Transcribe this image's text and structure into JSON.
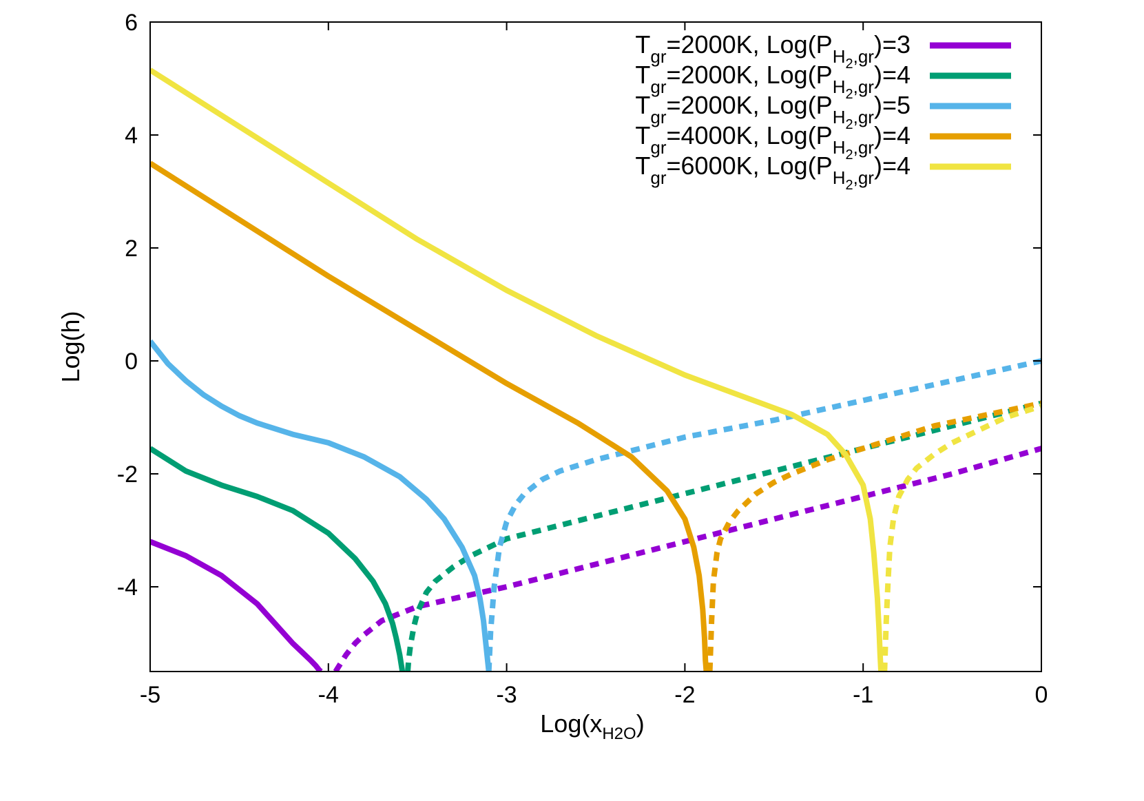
{
  "chart_data": {
    "type": "line",
    "title": "",
    "xlabel": "Log(x",
    "xlabel_sub": "H2O",
    "xlabel_close": ")",
    "ylabel": "Log(h)",
    "xlim": [
      -5,
      0
    ],
    "ylim": [
      -5.5,
      6
    ],
    "x_ticks": [
      -5,
      -4,
      -3,
      -2,
      -1,
      0
    ],
    "y_ticks": [
      -4,
      -2,
      0,
      2,
      4,
      6
    ],
    "x_tick_labels": [
      "-5",
      "-4",
      "-3",
      "-2",
      "-1",
      "0"
    ],
    "y_tick_labels": [
      "-4",
      "-2",
      "0",
      "2",
      "4",
      "6"
    ],
    "grid": false,
    "legend_position": "top-right",
    "series": [
      {
        "label": {
          "t": "T",
          "t_sub": "gr",
          "mid": "=2000K, Log(P",
          "p_sub": "H",
          "p_sub2": "2",
          "p_sub3": ",gr",
          "end": ")=3"
        },
        "color": "#9400d3",
        "solid": {
          "x": [
            -5.0,
            -4.8,
            -4.6,
            -4.4,
            -4.3,
            -4.2,
            -4.15,
            -4.1,
            -4.07,
            -4.05,
            -4.04
          ],
          "y": [
            -3.2,
            -3.45,
            -3.8,
            -4.3,
            -4.65,
            -5.0,
            -5.15,
            -5.3,
            -5.4,
            -5.48,
            -5.5
          ]
        },
        "dashed": {
          "x": [
            -3.96,
            -3.93,
            -3.9,
            -3.85,
            -3.8,
            -3.7,
            -3.5,
            -3.0,
            -2.5,
            -2.0,
            -1.5,
            -1.0,
            -0.5,
            0.0
          ],
          "y": [
            -5.5,
            -5.35,
            -5.2,
            -5.0,
            -4.85,
            -4.6,
            -4.35,
            -4.0,
            -3.6,
            -3.2,
            -2.8,
            -2.4,
            -2.0,
            -1.55
          ]
        }
      },
      {
        "label": {
          "t": "T",
          "t_sub": "gr",
          "mid": "=2000K, Log(P",
          "p_sub": "H",
          "p_sub2": "2",
          "p_sub3": ",gr",
          "end": ")=4"
        },
        "color": "#009e73",
        "solid": {
          "x": [
            -5.0,
            -4.8,
            -4.6,
            -4.4,
            -4.2,
            -4.0,
            -3.85,
            -3.75,
            -3.68,
            -3.64,
            -3.62,
            -3.6,
            -3.59,
            -3.585
          ],
          "y": [
            -1.55,
            -1.95,
            -2.2,
            -2.4,
            -2.65,
            -3.05,
            -3.5,
            -3.9,
            -4.3,
            -4.65,
            -4.9,
            -5.2,
            -5.4,
            -5.5
          ]
        },
        "dashed": {
          "x": [
            -3.555,
            -3.55,
            -3.54,
            -3.52,
            -3.5,
            -3.45,
            -3.4,
            -3.3,
            -3.2,
            -3.0,
            -2.5,
            -2.0,
            -1.5,
            -1.0,
            -0.5,
            0.0
          ],
          "y": [
            -5.5,
            -5.3,
            -5.05,
            -4.7,
            -4.45,
            -4.1,
            -3.9,
            -3.65,
            -3.45,
            -3.15,
            -2.75,
            -2.35,
            -1.95,
            -1.55,
            -1.15,
            -0.75
          ]
        }
      },
      {
        "label": {
          "t": "T",
          "t_sub": "gr",
          "mid": "=2000K, Log(P",
          "p_sub": "H",
          "p_sub2": "2",
          "p_sub3": ",gr",
          "end": ")=5"
        },
        "color": "#56b4e9",
        "solid": {
          "x": [
            -5.0,
            -4.9,
            -4.8,
            -4.7,
            -4.6,
            -4.5,
            -4.4,
            -4.2,
            -4.0,
            -3.8,
            -3.6,
            -3.45,
            -3.35,
            -3.25,
            -3.18,
            -3.15,
            -3.13,
            -3.12,
            -3.11,
            -3.105,
            -3.1
          ],
          "y": [
            0.35,
            -0.05,
            -0.35,
            -0.6,
            -0.8,
            -0.97,
            -1.1,
            -1.3,
            -1.45,
            -1.7,
            -2.05,
            -2.45,
            -2.8,
            -3.3,
            -3.8,
            -4.2,
            -4.6,
            -4.9,
            -5.2,
            -5.35,
            -5.5
          ]
        },
        "dashed": {
          "x": [
            -3.1,
            -3.09,
            -3.07,
            -3.04,
            -3.0,
            -2.95,
            -2.9,
            -2.8,
            -2.7,
            -2.6,
            -2.5,
            -2.0,
            -1.5,
            -1.0,
            -0.5,
            0.0
          ],
          "y": [
            -5.5,
            -4.8,
            -4.0,
            -3.3,
            -2.85,
            -2.55,
            -2.35,
            -2.1,
            -1.95,
            -1.85,
            -1.75,
            -1.35,
            -1.05,
            -0.7,
            -0.35,
            0.0
          ]
        }
      },
      {
        "label": {
          "t": "T",
          "t_sub": "gr",
          "mid": "=4000K, Log(P",
          "p_sub": "H",
          "p_sub2": "2",
          "p_sub3": ",gr",
          "end": ")=4"
        },
        "color": "#e69f00",
        "solid": {
          "x": [
            -5.0,
            -4.5,
            -4.0,
            -3.5,
            -3.0,
            -2.6,
            -2.3,
            -2.1,
            -2.0,
            -1.95,
            -1.92,
            -1.9,
            -1.89,
            -1.885,
            -1.88
          ],
          "y": [
            3.5,
            2.5,
            1.5,
            0.55,
            -0.4,
            -1.1,
            -1.7,
            -2.3,
            -2.8,
            -3.3,
            -3.8,
            -4.4,
            -4.9,
            -5.3,
            -5.5
          ]
        },
        "dashed": {
          "x": [
            -1.86,
            -1.85,
            -1.84,
            -1.82,
            -1.8,
            -1.75,
            -1.7,
            -1.6,
            -1.5,
            -1.4,
            -1.2,
            -1.0,
            -0.8,
            -0.6,
            -0.3,
            0.0
          ],
          "y": [
            -5.5,
            -4.6,
            -3.9,
            -3.4,
            -3.15,
            -2.85,
            -2.65,
            -2.35,
            -2.15,
            -2.0,
            -1.75,
            -1.55,
            -1.35,
            -1.15,
            -0.95,
            -0.75
          ]
        }
      },
      {
        "label": {
          "t": "T",
          "t_sub": "gr",
          "mid": "=6000K, Log(P",
          "p_sub": "H",
          "p_sub2": "2",
          "p_sub3": ",gr",
          "end": ")=4"
        },
        "color": "#f0e442",
        "solid": {
          "x": [
            -5.0,
            -4.5,
            -4.0,
            -3.5,
            -3.0,
            -2.5,
            -2.0,
            -1.7,
            -1.4,
            -1.2,
            -1.1,
            -1.0,
            -0.96,
            -0.94,
            -0.92,
            -0.91,
            -0.905,
            -0.9
          ],
          "y": [
            5.15,
            4.15,
            3.15,
            2.15,
            1.25,
            0.45,
            -0.25,
            -0.6,
            -0.95,
            -1.3,
            -1.65,
            -2.2,
            -2.8,
            -3.4,
            -4.2,
            -4.8,
            -5.2,
            -5.5
          ]
        },
        "dashed": {
          "x": [
            -0.88,
            -0.87,
            -0.86,
            -0.85,
            -0.83,
            -0.8,
            -0.75,
            -0.7,
            -0.6,
            -0.5,
            -0.4,
            -0.3,
            -0.2,
            -0.1,
            0.0
          ],
          "y": [
            -5.5,
            -4.6,
            -3.9,
            -3.3,
            -2.8,
            -2.4,
            -2.1,
            -1.9,
            -1.65,
            -1.45,
            -1.3,
            -1.15,
            -1.0,
            -0.9,
            -0.8
          ]
        }
      }
    ]
  }
}
